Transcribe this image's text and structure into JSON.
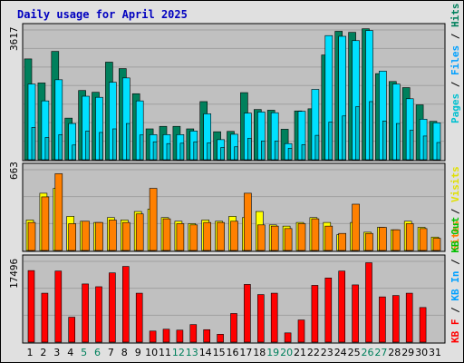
{
  "title": "Daily usage for April 2025",
  "colors": {
    "frame_bg": "#e0e0e0",
    "plot_bg": "#c0c0c0",
    "title": "#0000c0",
    "hits": "#00805c",
    "files": "#00e0ff",
    "pages": "#00c0d0",
    "visits": "#ffff00",
    "sites": "#ff8000",
    "kbf": "#ff0000",
    "kbin": "#00a0ff",
    "kbout": "#00c000",
    "weekday": "#000000",
    "weekend": "#00805c"
  },
  "chart_data": [
    {
      "type": "bar",
      "panel": "hits-files-pages",
      "max_label": "3617",
      "side_labels": [
        "Pages",
        "Files",
        "Hits"
      ],
      "x": [
        1,
        2,
        3,
        4,
        5,
        6,
        7,
        8,
        9,
        10,
        11,
        12,
        13,
        14,
        15,
        16,
        17,
        18,
        19,
        20,
        21,
        22,
        23,
        24,
        25,
        26,
        27,
        28,
        29,
        30,
        31
      ],
      "ylim": [
        0,
        3617
      ],
      "series": [
        {
          "name": "Hits",
          "values": [
            2810,
            2140,
            3020,
            1160,
            1930,
            1880,
            2720,
            2540,
            1840,
            860,
            930,
            930,
            860,
            1620,
            780,
            790,
            1870,
            1400,
            1380,
            850,
            1360,
            1420,
            2920,
            3580,
            3550,
            3650,
            2400,
            2180,
            2010,
            1530,
            1070
          ]
        },
        {
          "name": "Files",
          "values": [
            2110,
            1640,
            2230,
            1010,
            1770,
            1740,
            2160,
            2280,
            1640,
            700,
            700,
            700,
            800,
            1280,
            560,
            710,
            1300,
            1330,
            1310,
            450,
            1350,
            1960,
            3460,
            3440,
            3320,
            3600,
            2470,
            2110,
            1700,
            1130,
            1030
          ]
        },
        {
          "name": "Pages",
          "values": [
            900,
            620,
            700,
            410,
            800,
            760,
            860,
            1010,
            690,
            500,
            450,
            460,
            500,
            470,
            340,
            360,
            600,
            520,
            520,
            320,
            420,
            680,
            1050,
            1220,
            1480,
            1620,
            1080,
            1010,
            820,
            660,
            480
          ]
        }
      ]
    },
    {
      "type": "bar",
      "panel": "visits-sites",
      "max_label": "663",
      "side_labels": [
        "Sites",
        "Visits"
      ],
      "x": [
        1,
        2,
        3,
        4,
        5,
        6,
        7,
        8,
        9,
        10,
        11,
        12,
        13,
        14,
        15,
        16,
        17,
        18,
        19,
        20,
        21,
        22,
        23,
        24,
        25,
        26,
        27,
        28,
        29,
        30,
        31
      ],
      "ylim": [
        0,
        663
      ],
      "series": [
        {
          "name": "Visits",
          "values": [
            250,
            470,
            510,
            280,
            240,
            230,
            270,
            250,
            320,
            340,
            270,
            240,
            220,
            250,
            240,
            280,
            270,
            320,
            210,
            200,
            230,
            270,
            230,
            130,
            230,
            150,
            190,
            170,
            240,
            190,
            110
          ]
        },
        {
          "name": "Sites",
          "values": [
            230,
            440,
            630,
            220,
            240,
            230,
            250,
            230,
            300,
            510,
            260,
            220,
            210,
            230,
            230,
            240,
            470,
            210,
            200,
            180,
            220,
            260,
            200,
            140,
            380,
            140,
            190,
            170,
            220,
            180,
            100
          ]
        }
      ]
    },
    {
      "type": "bar",
      "panel": "kbytes",
      "max_label": "17496",
      "side_labels": [
        "KB F",
        "KB In",
        "KB Out"
      ],
      "x": [
        1,
        2,
        3,
        4,
        5,
        6,
        7,
        8,
        9,
        10,
        11,
        12,
        13,
        14,
        15,
        16,
        17,
        18,
        19,
        20,
        21,
        22,
        23,
        24,
        25,
        26,
        27,
        28,
        29,
        30,
        31
      ],
      "ylim": [
        0,
        17496
      ],
      "series": [
        {
          "name": "KB F",
          "values": [
            15500,
            10600,
            15400,
            5400,
            12600,
            12000,
            15000,
            16400,
            10600,
            2400,
            2800,
            2600,
            3800,
            2700,
            1700,
            6200,
            12500,
            10300,
            10600,
            2000,
            4800,
            12300,
            13900,
            15400,
            12400,
            17200,
            9800,
            10100,
            10600,
            7500,
            0
          ]
        },
        {
          "name": "KB In",
          "values": [
            0,
            0,
            0,
            0,
            0,
            0,
            0,
            0,
            0,
            0,
            0,
            0,
            0,
            0,
            0,
            0,
            0,
            0,
            0,
            0,
            0,
            0,
            0,
            0,
            0,
            0,
            0,
            0,
            0,
            0,
            0
          ]
        },
        {
          "name": "KB Out",
          "values": [
            0,
            0,
            0,
            0,
            0,
            0,
            0,
            0,
            0,
            0,
            0,
            0,
            0,
            0,
            0,
            0,
            0,
            0,
            0,
            0,
            0,
            0,
            0,
            0,
            0,
            0,
            0,
            0,
            0,
            0,
            0
          ]
        }
      ]
    }
  ],
  "weekend_days": [
    5,
    6,
    12,
    13,
    19,
    20,
    26,
    27
  ]
}
